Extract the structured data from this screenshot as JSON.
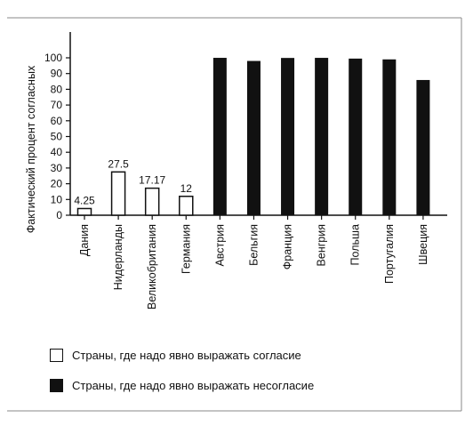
{
  "chart_data": {
    "type": "bar",
    "ylabel": "Фактический процент согласных",
    "xlabel": "",
    "ylim": [
      0,
      100
    ],
    "yticks": [
      0,
      10,
      20,
      30,
      40,
      50,
      60,
      70,
      80,
      90,
      100
    ],
    "grid": false,
    "categories": [
      "Дания",
      "Нидерланды",
      "Великобритания",
      "Германия",
      "Австрия",
      "Бельгия",
      "Франция",
      "Венгрия",
      "Польша",
      "Португалия",
      "Швеция"
    ],
    "values": [
      4.25,
      27.5,
      17.17,
      12,
      99.98,
      98,
      99.91,
      99.97,
      99.5,
      99,
      85.9
    ],
    "data_labels": [
      "4.25",
      "27.5",
      "17.17",
      "12",
      "",
      "",
      "",
      "",
      "",
      "",
      ""
    ],
    "groups": [
      "opt-in",
      "opt-in",
      "opt-in",
      "opt-in",
      "opt-out",
      "opt-out",
      "opt-out",
      "opt-out",
      "opt-out",
      "opt-out",
      "opt-out"
    ],
    "legend_placement": "bottom",
    "legend": [
      {
        "group": "opt-in",
        "label": "Страны, где надо явно выражать согласие",
        "color": "#ffffff"
      },
      {
        "group": "opt-out",
        "label": "Страны, где надо явно выражать несогласие",
        "color": "#111111"
      }
    ]
  }
}
